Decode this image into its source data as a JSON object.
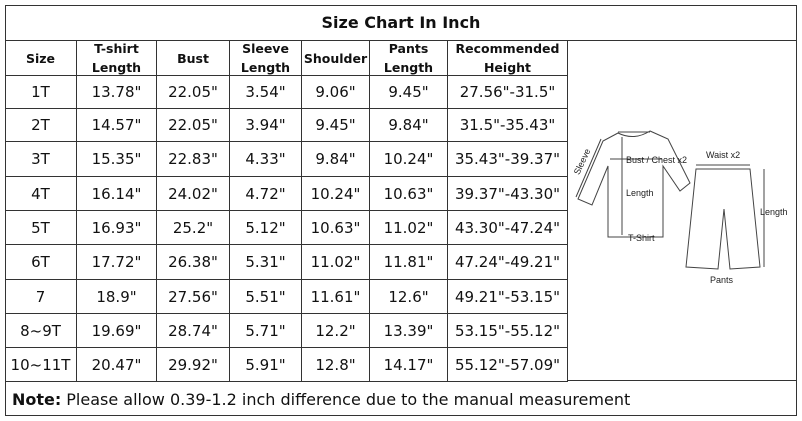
{
  "header": {
    "title": "Size Chart In Inch"
  },
  "table": {
    "columns": [
      "Size",
      "T-shirt Length",
      "Bust",
      "Sleeve Length",
      "Shoulder",
      "Pants Length",
      "Recommended Height"
    ],
    "rows": [
      [
        "1T",
        "13.78\"",
        "22.05\"",
        "3.54\"",
        "9.06\"",
        "9.45\"",
        "27.56\"-31.5\""
      ],
      [
        "2T",
        "14.57\"",
        "22.05\"",
        "3.94\"",
        "9.45\"",
        "9.84\"",
        "31.5\"-35.43\""
      ],
      [
        "3T",
        "15.35\"",
        "22.83\"",
        "4.33\"",
        "9.84\"",
        "10.24\"",
        "35.43\"-39.37\""
      ],
      [
        "4T",
        "16.14\"",
        "24.02\"",
        "4.72\"",
        "10.24\"",
        "10.63\"",
        "39.37\"-43.30\""
      ],
      [
        "5T",
        "16.93\"",
        "25.2\"",
        "5.12\"",
        "10.63\"",
        "11.02\"",
        "43.30\"-47.24\""
      ],
      [
        "6T",
        "17.72\"",
        "26.38\"",
        "5.31\"",
        "11.02\"",
        "11.81\"",
        "47.24\"-49.21\""
      ],
      [
        "7",
        "18.9\"",
        "27.56\"",
        "5.51\"",
        "11.61\"",
        "12.6\"",
        "49.21\"-53.15\""
      ],
      [
        "8~9T",
        "19.69\"",
        "28.74\"",
        "5.71\"",
        "12.2\"",
        "13.39\"",
        "53.15\"-55.12\""
      ],
      [
        "10~11T",
        "20.47\"",
        "29.92\"",
        "5.91\"",
        "12.8\"",
        "14.17\"",
        "55.12\"-57.09\""
      ]
    ]
  },
  "diagram": {
    "sleeve": "Sleeve",
    "bust": "Bust / Chest x2",
    "shirt_length": "Length",
    "shirt": "T-Shirt",
    "waist": "Waist x2",
    "pants_length": "Length",
    "pants": "Pants"
  },
  "note": {
    "label": "Note:",
    "text": "Please allow 0.39-1.2 inch difference due to the manual measurement"
  }
}
